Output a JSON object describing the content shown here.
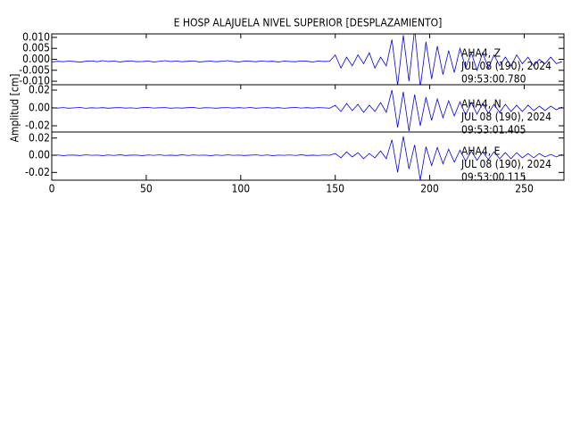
{
  "chart_data": [
    {
      "type": "line",
      "title": "E HOSP ALAJUELA NIVEL SUPERIOR [DESPLAZAMIENTO]",
      "annotations": [
        "AHA4, Z",
        "JUL 08 (190), 2024",
        "09:53:00.780"
      ],
      "xlim": [
        0,
        271
      ],
      "ylim": [
        -0.0116,
        0.0116
      ],
      "yticks": [
        {
          "value": 0.01,
          "label": "0.010"
        },
        {
          "value": 0.005,
          "label": "0.005"
        },
        {
          "value": 0,
          "label": "0.000"
        },
        {
          "value": -0.005,
          "label": "-0.005"
        },
        {
          "value": -0.01,
          "label": "-0.010"
        }
      ],
      "color": "#0000ff",
      "x": [
        0,
        3,
        6,
        9,
        12,
        15,
        18,
        21,
        24,
        27,
        30,
        33,
        36,
        39,
        42,
        45,
        48,
        51,
        54,
        57,
        60,
        63,
        66,
        69,
        72,
        75,
        78,
        81,
        84,
        87,
        90,
        93,
        96,
        99,
        102,
        105,
        108,
        111,
        114,
        117,
        120,
        123,
        126,
        129,
        132,
        135,
        138,
        141,
        144,
        147,
        150,
        153,
        156,
        159,
        162,
        165,
        168,
        171,
        174,
        177,
        180,
        183,
        186,
        189,
        192,
        195,
        198,
        201,
        204,
        207,
        210,
        213,
        216,
        219,
        222,
        225,
        228,
        231,
        234,
        237,
        240,
        243,
        246,
        249,
        252,
        255,
        258,
        261,
        264,
        267,
        270
      ],
      "values": [
        -0.0012,
        -0.0009,
        -0.0011,
        -0.0008,
        -0.001,
        -0.0013,
        -0.0009,
        -0.0007,
        -0.0011,
        -0.0006,
        -0.001,
        -0.0008,
        -0.0012,
        -0.0009,
        -0.0007,
        -0.0011,
        -0.001,
        -0.0008,
        -0.0012,
        -0.0009,
        -0.0006,
        -0.001,
        -0.0008,
        -0.0011,
        -0.0009,
        -0.0007,
        -0.0012,
        -0.001,
        -0.0008,
        -0.0011,
        -0.0009,
        -0.0006,
        -0.001,
        -0.0012,
        -0.0008,
        -0.0009,
        -0.0011,
        -0.0007,
        -0.001,
        -0.0009,
        -0.0012,
        -0.0008,
        -0.001,
        -0.0011,
        -0.0007,
        -0.0009,
        -0.0012,
        -0.0008,
        -0.001,
        -0.0009,
        0.002,
        -0.004,
        0.001,
        -0.003,
        0.002,
        -0.002,
        0.003,
        -0.004,
        0.001,
        -0.003,
        0.009,
        -0.012,
        0.011,
        -0.01,
        0.014,
        -0.013,
        0.008,
        -0.009,
        0.006,
        -0.007,
        0.004,
        -0.006,
        0.005,
        -0.004,
        0.003,
        -0.005,
        0.003,
        -0.004,
        0.002,
        -0.003,
        0.001,
        -0.003,
        0.002,
        -0.002,
        0.001,
        -0.003,
        0.0,
        -0.002,
        0.001,
        -0.002,
        -0.001
      ]
    },
    {
      "type": "line",
      "ylabel": "Amplitud [cm]",
      "annotations": [
        "AHA4, N",
        "JUL 08 (190), 2024",
        "09:53:01.405"
      ],
      "xlim": [
        0,
        271
      ],
      "ylim": [
        -0.027,
        0.026
      ],
      "yticks": [
        {
          "value": 0.02,
          "label": "0.02"
        },
        {
          "value": 0,
          "label": "0.00"
        },
        {
          "value": -0.02,
          "label": "-0.02"
        }
      ],
      "color": "#0000ff",
      "x": [
        0,
        3,
        6,
        9,
        12,
        15,
        18,
        21,
        24,
        27,
        30,
        33,
        36,
        39,
        42,
        45,
        48,
        51,
        54,
        57,
        60,
        63,
        66,
        69,
        72,
        75,
        78,
        81,
        84,
        87,
        90,
        93,
        96,
        99,
        102,
        105,
        108,
        111,
        114,
        117,
        120,
        123,
        126,
        129,
        132,
        135,
        138,
        141,
        144,
        147,
        150,
        153,
        156,
        159,
        162,
        165,
        168,
        171,
        174,
        177,
        180,
        183,
        186,
        189,
        192,
        195,
        198,
        201,
        204,
        207,
        210,
        213,
        216,
        219,
        222,
        225,
        228,
        231,
        234,
        237,
        240,
        243,
        246,
        249,
        252,
        255,
        258,
        261,
        264,
        267,
        270
      ],
      "values": [
        0.0003,
        -0.0002,
        0.0004,
        -0.0003,
        0.0001,
        0.0005,
        -0.0004,
        0.0002,
        -0.0001,
        0.0003,
        -0.0003,
        0.0002,
        0.0004,
        -0.0002,
        0.0001,
        -0.0004,
        0.0003,
        0.0005,
        -0.0001,
        0.0002,
        0.0004,
        -0.0003,
        0.0001,
        -0.0002,
        0.0003,
        0.0005,
        -0.0004,
        0.0002,
        0.0001,
        -0.0003,
        0.0002,
        0.0004,
        -0.0002,
        0.0003,
        -0.0001,
        0.0005,
        -0.0003,
        0.0001,
        0.0004,
        -0.0002,
        0.0003,
        -0.0004,
        0.0002,
        0.0005,
        -0.0001,
        0.0003,
        -0.0002,
        0.0004,
        0.0001,
        -0.0003,
        0.003,
        -0.004,
        0.005,
        -0.003,
        0.004,
        -0.005,
        0.003,
        -0.004,
        0.006,
        -0.005,
        0.02,
        -0.022,
        0.018,
        -0.026,
        0.015,
        -0.02,
        0.012,
        -0.014,
        0.01,
        -0.011,
        0.008,
        -0.009,
        0.007,
        -0.008,
        0.006,
        -0.007,
        0.005,
        -0.006,
        0.004,
        -0.005,
        0.004,
        -0.004,
        0.003,
        -0.004,
        0.003,
        -0.003,
        0.002,
        -0.003,
        0.002,
        -0.002,
        0.001
      ]
    },
    {
      "type": "line",
      "annotations": [
        "AHA4, E",
        "JUL 08 (190), 2024",
        "09:53:00.115"
      ],
      "xlim": [
        0,
        271
      ],
      "ylim": [
        -0.029,
        0.027
      ],
      "xticks": [
        0,
        50,
        100,
        150,
        200,
        250
      ],
      "yticks": [
        {
          "value": 0.02,
          "label": "0.02"
        },
        {
          "value": 0,
          "label": "0.00"
        },
        {
          "value": -0.02,
          "label": "-0.02"
        }
      ],
      "color": "#0000ff",
      "x": [
        0,
        3,
        6,
        9,
        12,
        15,
        18,
        21,
        24,
        27,
        30,
        33,
        36,
        39,
        42,
        45,
        48,
        51,
        54,
        57,
        60,
        63,
        66,
        69,
        72,
        75,
        78,
        81,
        84,
        87,
        90,
        93,
        96,
        99,
        102,
        105,
        108,
        111,
        114,
        117,
        120,
        123,
        126,
        129,
        132,
        135,
        138,
        141,
        144,
        147,
        150,
        153,
        156,
        159,
        162,
        165,
        168,
        171,
        174,
        177,
        180,
        183,
        186,
        189,
        192,
        195,
        198,
        201,
        204,
        207,
        210,
        213,
        216,
        219,
        222,
        225,
        228,
        231,
        234,
        237,
        240,
        243,
        246,
        249,
        252,
        255,
        258,
        261,
        264,
        267,
        270
      ],
      "values": [
        -0.0002,
        0.0003,
        -0.0004,
        0.0002,
        0.0001,
        -0.0003,
        0.0004,
        -0.0001,
        0.0002,
        -0.0004,
        0.0003,
        -0.0002,
        0.0005,
        -0.0003,
        0.0001,
        0.0002,
        -0.0004,
        0.0003,
        -0.0001,
        0.0004,
        -0.0002,
        0.0001,
        -0.0003,
        0.0005,
        -0.0002,
        0.0003,
        -0.0001,
        0.0002,
        -0.0004,
        0.0003,
        -0.0002,
        0.0004,
        -0.0001,
        0.0002,
        -0.0003,
        0.0001,
        0.0004,
        -0.0002,
        0.0003,
        -0.0004,
        0.0002,
        -0.0001,
        0.0003,
        -0.0002,
        0.0005,
        -0.0003,
        0.0001,
        -0.0002,
        0.0003,
        -0.0001,
        0.002,
        -0.003,
        0.004,
        -0.002,
        0.003,
        -0.004,
        0.002,
        -0.003,
        0.005,
        -0.004,
        0.018,
        -0.02,
        0.022,
        -0.016,
        0.012,
        -0.029,
        0.01,
        -0.012,
        0.009,
        -0.01,
        0.007,
        -0.008,
        0.006,
        -0.007,
        0.005,
        -0.006,
        0.004,
        -0.005,
        0.004,
        -0.004,
        0.003,
        -0.004,
        0.003,
        -0.003,
        0.002,
        -0.003,
        0.002,
        -0.002,
        0.001,
        -0.002,
        0.001
      ]
    }
  ]
}
